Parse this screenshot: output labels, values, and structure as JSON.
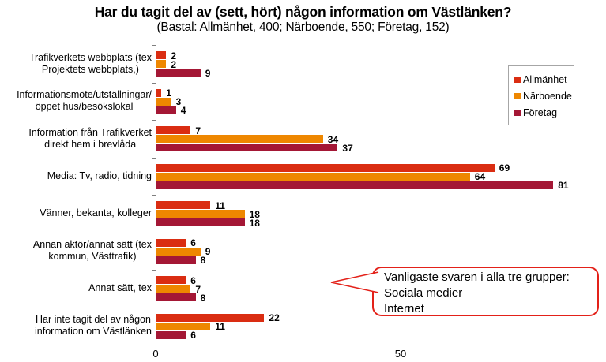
{
  "page": {
    "title": "Har du tagit del av (sett, hört) någon information om Västlänken?",
    "subtitle": "(Bastal: Allmänhet, 400; Närboende, 550; Företag, 152)"
  },
  "chart_data": {
    "type": "bar",
    "orientation": "horizontal",
    "title": "Har du tagit del av (sett, hört) någon information om Västlänken?",
    "subtitle": "(Bastal: Allmänhet, 400; Närboende, 550; Företag, 152)",
    "categories": [
      [
        "Trafikverkets webbplats (tex",
        "Projektets webbplats,)"
      ],
      [
        "Informationsmöte/utställningar/",
        "öppet hus/besökslokal"
      ],
      [
        "Information från Trafikverket",
        "direkt hem i brevlåda"
      ],
      [
        "Media: Tv, radio, tidning"
      ],
      [
        "Vänner, bekanta, kolleger"
      ],
      [
        "Annan aktör/annat sätt (tex",
        "kommun, Västtrafik)"
      ],
      [
        "Annat sätt, tex"
      ],
      [
        "Har inte tagit del av någon",
        "information om Västlänken"
      ]
    ],
    "series": [
      {
        "name": "Allmänhet",
        "color": "#da2d12",
        "values": [
          2,
          1,
          7,
          69,
          11,
          6,
          6,
          22
        ]
      },
      {
        "name": "Närboende",
        "color": "#ee8700",
        "values": [
          2,
          3,
          34,
          64,
          18,
          9,
          7,
          11
        ]
      },
      {
        "name": "Företag",
        "color": "#a41735",
        "values": [
          9,
          4,
          37,
          81,
          18,
          8,
          8,
          6
        ]
      }
    ],
    "value_labels": true,
    "grid": false,
    "xlim": [
      0,
      91
    ],
    "x_ticks": [
      0,
      50
    ],
    "legend_position": "top-right"
  },
  "callout": {
    "lines": [
      "Vanligaste svaren i alla tre grupper:",
      "Sociala medier",
      "Internet"
    ]
  }
}
